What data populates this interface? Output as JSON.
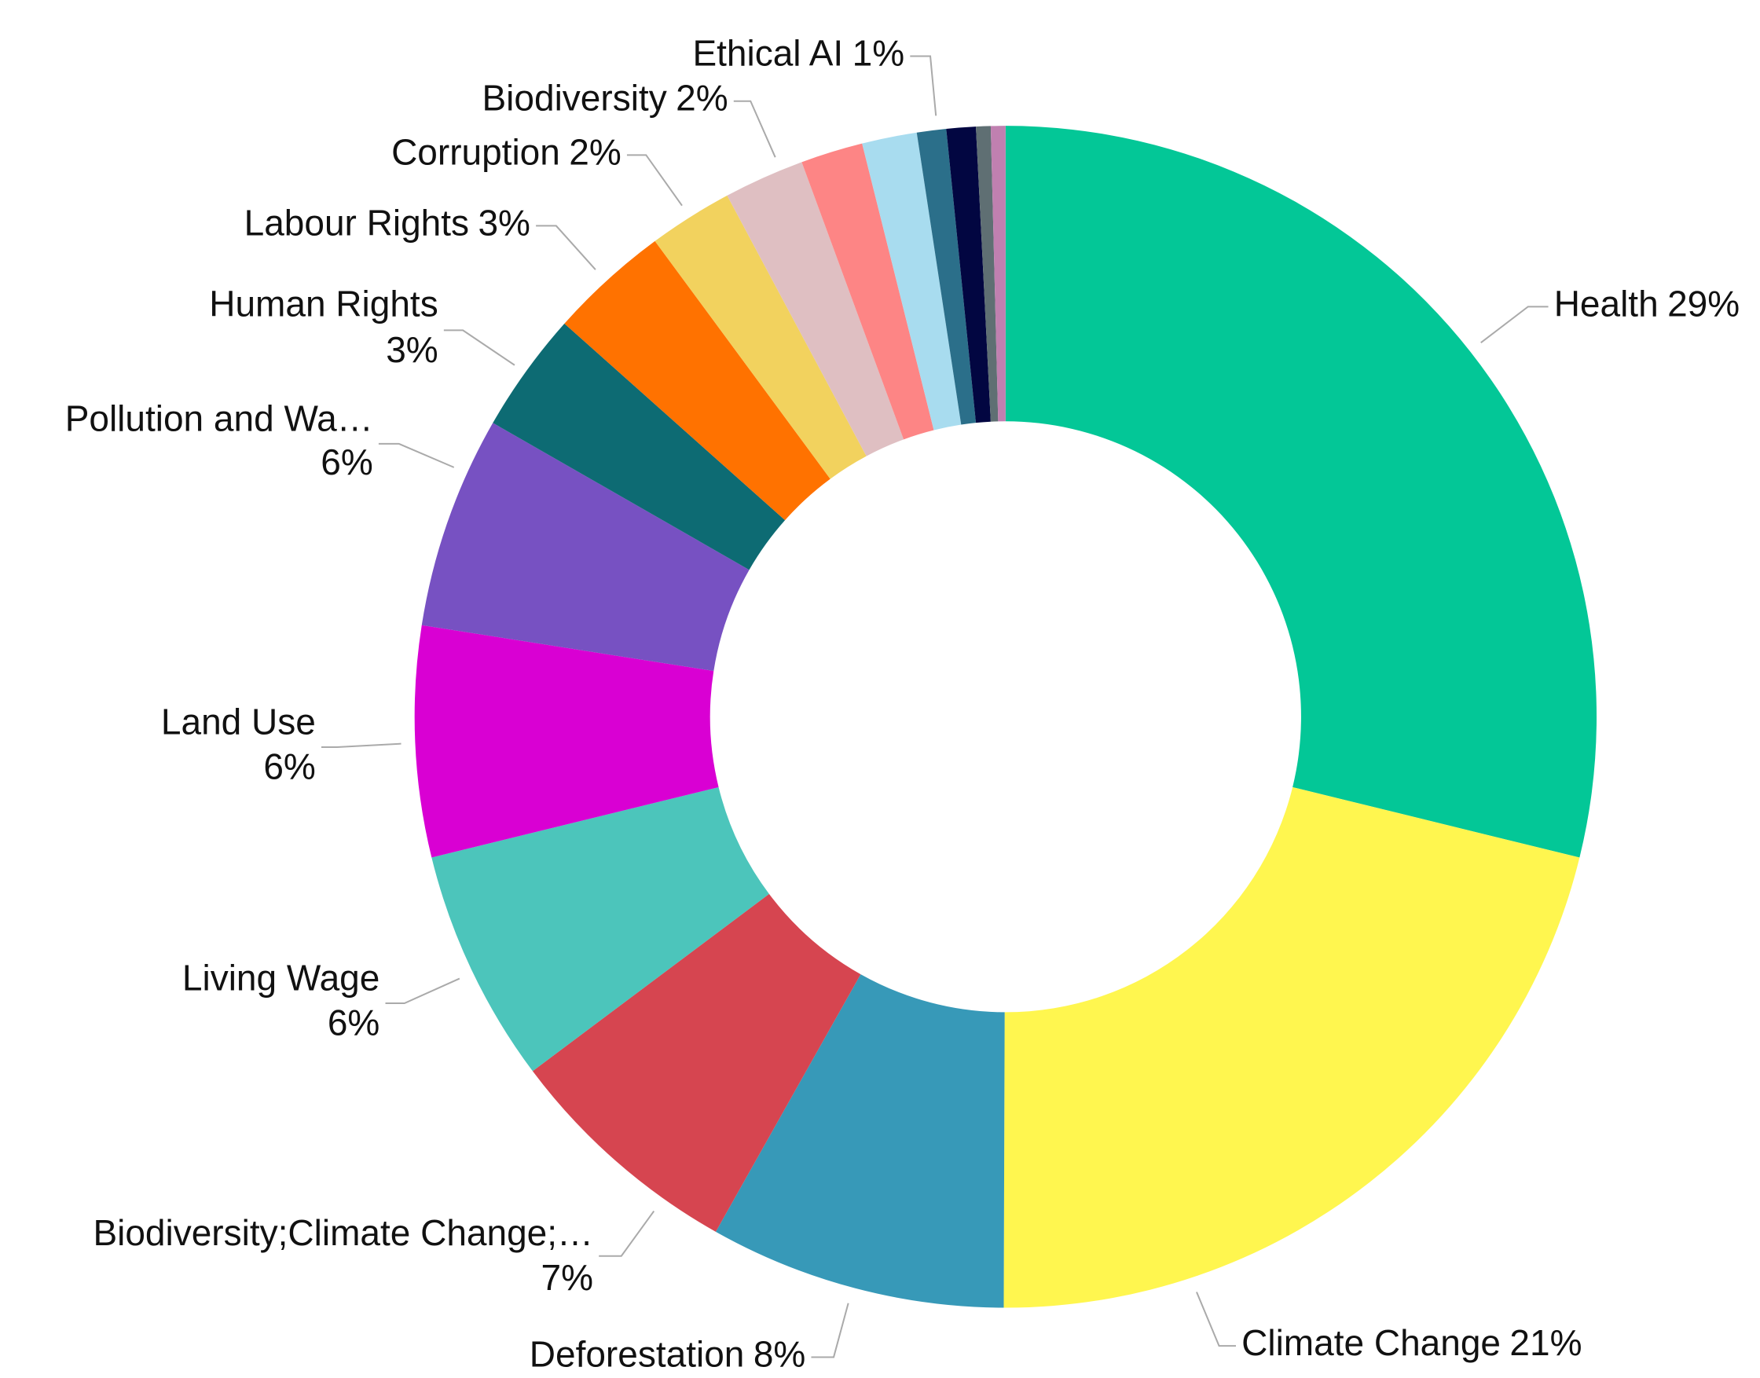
{
  "chart_data": {
    "type": "donut",
    "categories": [
      "Health",
      "Climate Change",
      "Deforestation",
      "Biodiversity;Climate Change;…",
      "Living Wage",
      "Land Use",
      "Pollution and Wa…",
      "Human Rights",
      "Labour Rights",
      "Corruption",
      "Biodiversity",
      null,
      null,
      "Ethical AI",
      null,
      null,
      null
    ],
    "values": [
      28.8,
      21.2,
      8.1,
      6.6,
      6.4,
      6.3,
      5.8,
      3.3,
      3.3,
      2.3,
      2.2,
      1.7,
      1.5,
      0.8,
      0.8,
      0.4,
      0.4
    ],
    "value_labels": [
      "29%",
      "21%",
      "8%",
      "7%",
      "6%",
      "6%",
      "6%",
      "3%",
      "3%",
      "2%",
      "2%",
      null,
      null,
      "1%",
      null,
      null,
      null
    ],
    "colors": [
      "#03c797",
      "#fff64f",
      "#3799b8",
      "#d64550",
      "#4cc5bb",
      "#d900d3",
      "#7751c2",
      "#0d6b73",
      "#ff7200",
      "#f2d25e",
      "#dfbfc2",
      "#fd8585",
      "#a8dcef",
      "#2b6f8a",
      "#020641",
      "#5f6f73",
      "#c080b0"
    ]
  }
}
